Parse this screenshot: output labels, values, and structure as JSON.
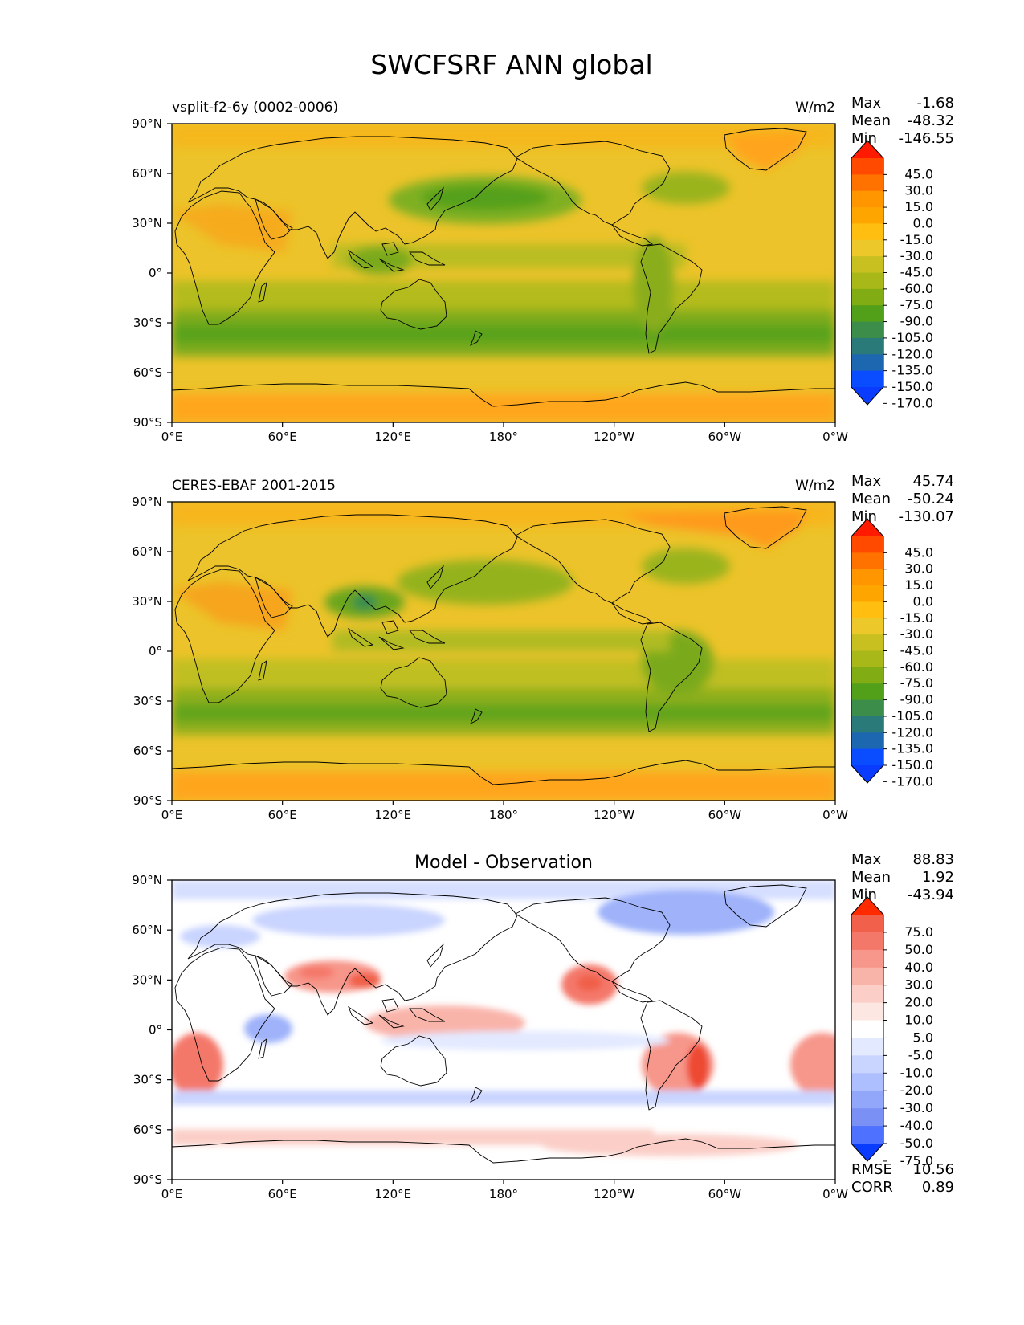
{
  "title": "SWCFSRF ANN global",
  "axes": {
    "lon_ticks": [
      "0°E",
      "60°E",
      "120°E",
      "180°",
      "120°W",
      "60°W",
      "0°W"
    ],
    "lat_ticks": [
      "90°N",
      "60°N",
      "30°N",
      "0°",
      "30°S",
      "60°S",
      "90°S"
    ]
  },
  "panels": [
    {
      "id": "model",
      "left_title": "vsplit-f2-6y (0002-0006)",
      "center_title": "",
      "units": "W/m2",
      "stats": [
        {
          "label": "Max",
          "value": "-1.68"
        },
        {
          "label": "Mean",
          "value": "-48.32"
        },
        {
          "label": "Min",
          "value": "-146.55"
        }
      ],
      "colorbar": {
        "labels": [
          "45.0",
          "30.0",
          "15.0",
          "0.0",
          "-15.0",
          "-30.0",
          "-45.0",
          "-60.0",
          "-75.0",
          "-90.0",
          "-105.0",
          "-120.0",
          "-135.0",
          "-150.0",
          "-170.0"
        ],
        "colors": [
          "#ff1a00",
          "#ff4a00",
          "#ff7200",
          "#ff9600",
          "#ffa500",
          "#ffbe10",
          "#ecc82a",
          "#c8c020",
          "#a8b818",
          "#82ac14",
          "#52a01a",
          "#3c8c4a",
          "#2a7a7a",
          "#1d66b0",
          "#0a4cff",
          "#0a3cff"
        ]
      },
      "extra_stats": []
    },
    {
      "id": "obs",
      "left_title": "CERES-EBAF 2001-2015",
      "center_title": "",
      "units": "W/m2",
      "stats": [
        {
          "label": "Max",
          "value": "45.74"
        },
        {
          "label": "Mean",
          "value": "-50.24"
        },
        {
          "label": "Min",
          "value": "-130.07"
        }
      ],
      "colorbar": {
        "labels": [
          "45.0",
          "30.0",
          "15.0",
          "0.0",
          "-15.0",
          "-30.0",
          "-45.0",
          "-60.0",
          "-75.0",
          "-90.0",
          "-105.0",
          "-120.0",
          "-135.0",
          "-150.0",
          "-170.0"
        ],
        "colors": [
          "#ff1a00",
          "#ff4a00",
          "#ff7200",
          "#ff9600",
          "#ffa500",
          "#ffbe10",
          "#ecc82a",
          "#c8c020",
          "#a8b818",
          "#82ac14",
          "#52a01a",
          "#3c8c4a",
          "#2a7a7a",
          "#1d66b0",
          "#0a4cff",
          "#0a3cff"
        ]
      },
      "extra_stats": []
    },
    {
      "id": "diff",
      "left_title": "",
      "center_title": "Model - Observation",
      "units": "",
      "stats": [
        {
          "label": "Max",
          "value": "88.83"
        },
        {
          "label": "Mean",
          "value": "1.92"
        },
        {
          "label": "Min",
          "value": "-43.94"
        }
      ],
      "colorbar": {
        "labels": [
          "75.0",
          "50.0",
          "40.0",
          "30.0",
          "20.0",
          "10.0",
          "5.0",
          "-5.0",
          "-10.0",
          "-20.0",
          "-30.0",
          "-40.0",
          "-50.0",
          "-75.0"
        ],
        "colors": [
          "#ff2a00",
          "#f0604a",
          "#f4786a",
          "#f7968a",
          "#f9b4aa",
          "#fbcfc8",
          "#fde7e3",
          "#ffffff",
          "#e3e9ff",
          "#c9d4ff",
          "#aebfff",
          "#92a6fa",
          "#7a90f5",
          "#4e72ff",
          "#0a3cff"
        ]
      },
      "extra_stats": [
        {
          "label": "RMSE",
          "value": "10.56"
        },
        {
          "label": "CORR",
          "value": "0.89"
        }
      ]
    }
  ],
  "chart_data": [
    {
      "type": "heatmap",
      "title": "vsplit-f2-6y (0002-0006)",
      "units": "W/m2",
      "x_ticks": [
        "0°E",
        "60°E",
        "120°E",
        "180°",
        "120°W",
        "60°W",
        "0°W"
      ],
      "y_ticks": [
        "90°N",
        "60°N",
        "30°N",
        "0°",
        "30°S",
        "60°S",
        "90°S"
      ],
      "color_levels": [
        -170,
        -150,
        -135,
        -120,
        -105,
        -90,
        -75,
        -60,
        -45,
        -30,
        -15,
        0,
        15,
        30,
        45
      ],
      "max": -1.68,
      "mean": -48.32,
      "min": -146.55
    },
    {
      "type": "heatmap",
      "title": "CERES-EBAF 2001-2015",
      "units": "W/m2",
      "x_ticks": [
        "0°E",
        "60°E",
        "120°E",
        "180°",
        "120°W",
        "60°W",
        "0°W"
      ],
      "y_ticks": [
        "90°N",
        "60°N",
        "30°N",
        "0°",
        "30°S",
        "60°S",
        "90°S"
      ],
      "color_levels": [
        -170,
        -150,
        -135,
        -120,
        -105,
        -90,
        -75,
        -60,
        -45,
        -30,
        -15,
        0,
        15,
        30,
        45
      ],
      "max": 45.74,
      "mean": -50.24,
      "min": -130.07
    },
    {
      "type": "heatmap",
      "title": "Model - Observation",
      "x_ticks": [
        "0°E",
        "60°E",
        "120°E",
        "180°",
        "120°W",
        "60°W",
        "0°W"
      ],
      "y_ticks": [
        "90°N",
        "60°N",
        "30°N",
        "0°",
        "30°S",
        "60°S",
        "90°S"
      ],
      "color_levels": [
        -75,
        -50,
        -40,
        -30,
        -20,
        -10,
        -5,
        5,
        10,
        20,
        30,
        40,
        50,
        75
      ],
      "max": 88.83,
      "mean": 1.92,
      "min": -43.94,
      "rmse": 10.56,
      "corr": 0.89
    }
  ]
}
